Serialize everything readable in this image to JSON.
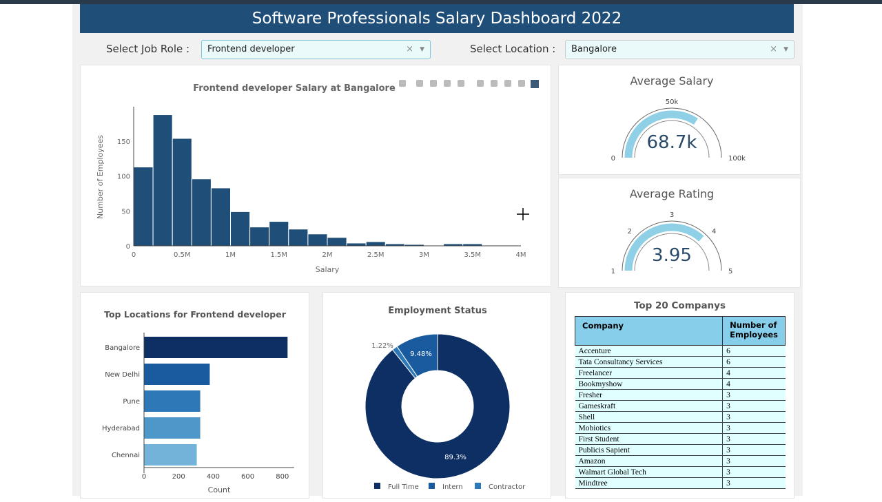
{
  "header": {
    "title": "Software Professionals Salary Dashboard 2022"
  },
  "filters": {
    "job_label": "Select Job Role :",
    "job_value": "Frontend developer",
    "loc_label": "Select Location :",
    "loc_value": "Bangalore",
    "clear": "×",
    "caret": "▼"
  },
  "chart_data": [
    {
      "type": "bar",
      "subtype": "histogram",
      "title": "Frontend developer  Salary at  Bangalore",
      "xlabel": "Salary",
      "ylabel": "Number of Employees",
      "bin_width": 200000,
      "bin_starts": [
        0,
        200000,
        400000,
        600000,
        800000,
        1000000,
        1200000,
        1400000,
        1600000,
        1800000,
        2000000,
        2200000,
        2400000,
        2600000,
        2800000,
        3000000,
        3200000,
        3400000,
        3600000,
        3800000
      ],
      "values": [
        113,
        188,
        154,
        96,
        83,
        49,
        27,
        35,
        24,
        17,
        12,
        4,
        6,
        3,
        2,
        0,
        3,
        3,
        1,
        1
      ],
      "xlim": [
        0,
        4000000
      ],
      "ylim": [
        0,
        200
      ],
      "xticks": [
        "0",
        "0.5M",
        "1M",
        "1.5M",
        "2M",
        "2.5M",
        "3M",
        "3.5M",
        "4M"
      ],
      "yticks": [
        "0",
        "50",
        "100",
        "150"
      ],
      "color": "#1f4e79"
    },
    {
      "type": "bar",
      "orientation": "horizontal",
      "title": "Top Locations for Frontend developer",
      "xlabel": "Count",
      "categories": [
        "Bangalore",
        "New Delhi",
        "Pune",
        "Hyderabad",
        "Chennai"
      ],
      "values": [
        830,
        380,
        325,
        325,
        305
      ],
      "colors": [
        "#0d2f63",
        "#1a5a9e",
        "#2e78b7",
        "#4d97c9",
        "#74b3d9"
      ],
      "xticks": [
        "0",
        "200",
        "400",
        "600",
        "800"
      ],
      "xlim": [
        0,
        870
      ]
    },
    {
      "type": "pie",
      "hole": true,
      "title": "Employment Status",
      "labels": [
        "Full Time",
        "Intern",
        "Contractor"
      ],
      "values": [
        89.3,
        9.48,
        1.22
      ],
      "value_labels": [
        "89.3%",
        "9.48%",
        "1.22%"
      ],
      "colors": [
        "#0d2f63",
        "#1a5a9e",
        "#2e78b7"
      ]
    }
  ],
  "gauges": [
    {
      "title": "Average Salary",
      "value": 68.7,
      "value_label": "68.7k",
      "min": 0,
      "max": 100,
      "tick_labels": [
        "0",
        "50k",
        "100k"
      ],
      "color": "#8fd0e6"
    },
    {
      "title": "Average Rating",
      "value": 3.95,
      "value_label": "3.95",
      "sub": "-",
      "min": 1,
      "max": 5,
      "tick_labels": [
        "1",
        "2",
        "3",
        "4",
        "5"
      ],
      "color": "#8fd0e6"
    }
  ],
  "companies": {
    "title": "Top 20 Companys",
    "headers": [
      "Company",
      "Number of Employees"
    ],
    "rows": [
      [
        "Accenture",
        "6"
      ],
      [
        "Tata Consultancy Services",
        "6"
      ],
      [
        "Freelancer",
        "4"
      ],
      [
        "Bookmyshow",
        "4"
      ],
      [
        "Fresher",
        "3"
      ],
      [
        "Gameskraft",
        "3"
      ],
      [
        "Shell",
        "3"
      ],
      [
        "Mobiotics",
        "3"
      ],
      [
        "First Student",
        "3"
      ],
      [
        "Publicis Sapient",
        "3"
      ],
      [
        "Amazon",
        "3"
      ],
      [
        "Walmart Global Tech",
        "3"
      ],
      [
        "Mindtree",
        "3"
      ]
    ]
  },
  "colors": {
    "header": "#1f4e79",
    "table_header": "#87ceeb",
    "table_body": "#e0ffff"
  }
}
